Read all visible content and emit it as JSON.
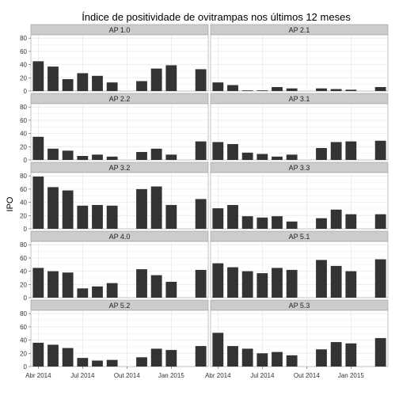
{
  "chart_data": {
    "type": "bar",
    "title": "Índice de positividade de ovitrampas nos últimos 12 meses",
    "xlabel": "",
    "ylabel": "IPO",
    "ylim": [
      0,
      85
    ],
    "y_ticks": [
      0,
      20,
      40,
      60,
      80
    ],
    "x_ticks": [
      "Abr 2014",
      "Jul 2014",
      "Out 2014",
      "Jan 2015"
    ],
    "grid": true,
    "bar_color": "#333333",
    "strip_color": "#cccccc",
    "grid_color": "#e8e8e8",
    "panels": [
      {
        "label": "AP 1.0",
        "values": [
          45,
          37,
          18,
          27,
          23,
          13,
          null,
          15,
          34,
          39,
          null,
          33
        ]
      },
      {
        "label": "AP 2.1",
        "values": [
          13,
          9,
          1,
          1,
          6,
          4,
          null,
          4,
          3,
          2,
          null,
          6
        ]
      },
      {
        "label": "AP 2.2",
        "values": [
          35,
          17,
          14,
          6,
          8,
          5,
          null,
          12,
          17,
          8,
          null,
          28
        ]
      },
      {
        "label": "AP 3.1",
        "values": [
          27,
          24,
          11,
          9,
          5,
          8,
          null,
          18,
          27,
          28,
          null,
          29
        ]
      },
      {
        "label": "AP 3.2",
        "values": [
          79,
          63,
          58,
          35,
          36,
          35,
          null,
          60,
          64,
          36,
          null,
          45
        ]
      },
      {
        "label": "AP 3.3",
        "values": [
          31,
          36,
          19,
          17,
          19,
          11,
          null,
          16,
          29,
          22,
          null,
          22
        ]
      },
      {
        "label": "AP 4.0",
        "values": [
          45,
          40,
          38,
          14,
          17,
          22,
          null,
          43,
          34,
          24,
          null,
          42
        ]
      },
      {
        "label": "AP 5.1",
        "values": [
          52,
          46,
          40,
          37,
          45,
          42,
          null,
          57,
          48,
          40,
          null,
          58
        ]
      },
      {
        "label": "AP 5.2",
        "values": [
          36,
          33,
          28,
          13,
          9,
          10,
          null,
          14,
          27,
          25,
          null,
          31
        ]
      },
      {
        "label": "AP 5.3",
        "values": [
          51,
          31,
          27,
          20,
          22,
          17,
          null,
          26,
          37,
          35,
          null,
          43
        ]
      }
    ]
  }
}
